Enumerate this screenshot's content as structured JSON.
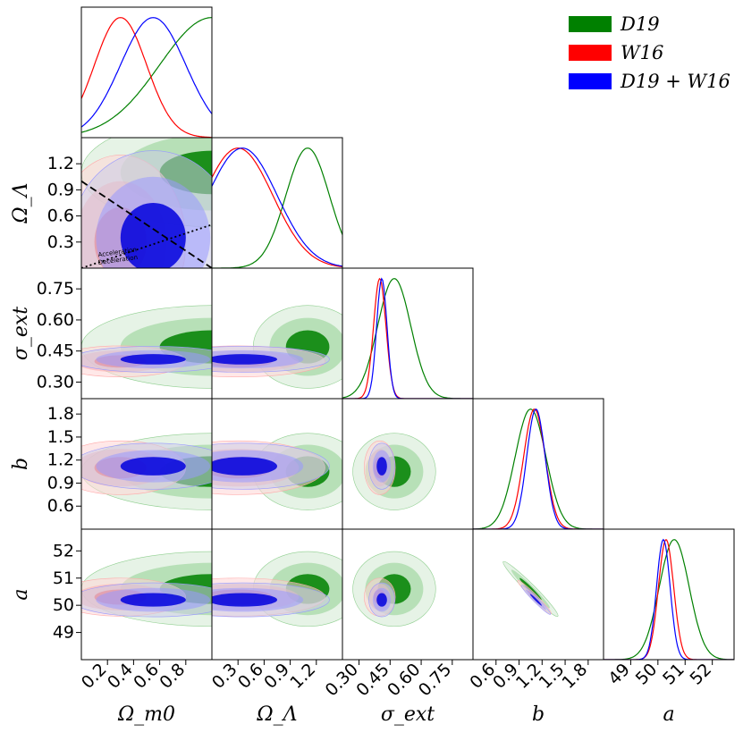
{
  "chart_data": {
    "type": "corner",
    "title": "",
    "parameters": [
      {
        "key": "Om",
        "label": "Ω_m0",
        "range": [
          0.0,
          1.0
        ],
        "ticks": [
          "0.2",
          "0.4",
          "0.6",
          "0.8"
        ]
      },
      {
        "key": "OL",
        "label": "Ω_Λ",
        "range": [
          0.0,
          1.5
        ],
        "ticks": [
          "0.3",
          "0.6",
          "0.9",
          "1.2"
        ]
      },
      {
        "key": "sig",
        "label": "σ_ext",
        "range": [
          0.22,
          0.85
        ],
        "ticks": [
          "0.30",
          "0.45",
          "0.60",
          "0.75"
        ]
      },
      {
        "key": "b",
        "label": "b",
        "range": [
          0.3,
          2.0
        ],
        "ticks": [
          "0.6",
          "0.9",
          "1.2",
          "1.5",
          "1.8"
        ]
      },
      {
        "key": "a",
        "label": "a",
        "range": [
          48.0,
          52.8
        ],
        "ticks": [
          "49",
          "50",
          "51",
          "52"
        ]
      }
    ],
    "y_tick_labels": {
      "OL": [
        "0.3",
        "0.6",
        "0.9",
        "1.2"
      ],
      "sig": [
        "0.30",
        "0.45",
        "0.60",
        "0.75"
      ],
      "b": [
        "0.6",
        "0.9",
        "1.2",
        "1.5",
        "1.8"
      ],
      "a": [
        "49",
        "50",
        "51",
        "52"
      ]
    },
    "series": [
      {
        "name": "D19",
        "legend": "D19",
        "color": "#008000",
        "means": {
          "Om": 1.0,
          "OL": 1.1,
          "sig": 0.47,
          "b": 1.05,
          "a": 50.6
        },
        "sds": {
          "Om": 0.4,
          "OL": 0.25,
          "sig": 0.08,
          "b": 0.2,
          "a": 0.55
        }
      },
      {
        "name": "W16",
        "legend": "W16",
        "color": "#ff0000",
        "means": {
          "Om": 0.3,
          "OL": 0.3,
          "sig": 0.4,
          "b": 1.1,
          "a": 50.3
        },
        "sds": {
          "Om": 0.2,
          "OL": 0.4,
          "sig": 0.03,
          "b": 0.14,
          "a": 0.28
        }
      },
      {
        "name": "D19+W16",
        "legend": "D19 + W16",
        "color": "#0000ff",
        "means": {
          "Om": 0.55,
          "OL": 0.35,
          "sig": 0.41,
          "b": 1.12,
          "a": 50.2
        },
        "sds": {
          "Om": 0.25,
          "OL": 0.4,
          "sig": 0.025,
          "b": 0.12,
          "a": 0.25
        }
      }
    ],
    "annotations": {
      "acceleration": "Acceleration",
      "deceleration": "Deceleration"
    },
    "reference_lines": [
      {
        "panel": "Om-OL",
        "style": "dashed",
        "name": "flat universe",
        "points": [
          [
            0.0,
            1.0
          ],
          [
            1.0,
            0.0
          ]
        ]
      },
      {
        "panel": "Om-OL",
        "style": "dotted",
        "name": "acceleration boundary",
        "points": [
          [
            0.0,
            0.0
          ],
          [
            1.0,
            0.5
          ]
        ]
      }
    ],
    "legend_position": "top-right"
  }
}
